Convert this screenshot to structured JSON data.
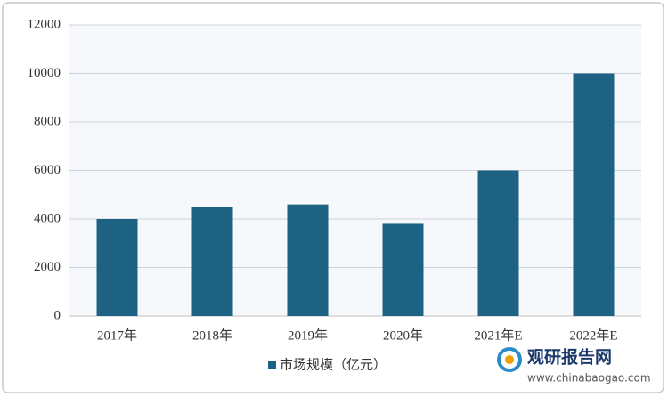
{
  "chart_data": {
    "type": "bar",
    "categories": [
      "2017年",
      "2018年",
      "2019年",
      "2020年",
      "2021年E",
      "2022年E"
    ],
    "series": [
      {
        "name": "市场规模（亿元）",
        "color": "#1d6283",
        "values": [
          4000,
          4500,
          4600,
          3800,
          6000,
          10000
        ]
      }
    ],
    "ylim": [
      0,
      12000
    ],
    "yticks": [
      0,
      2000,
      4000,
      6000,
      8000,
      10000,
      12000
    ],
    "grid": true,
    "watermark": {
      "brand": "观研报告网",
      "url": "www.chinabaogao.com"
    }
  }
}
